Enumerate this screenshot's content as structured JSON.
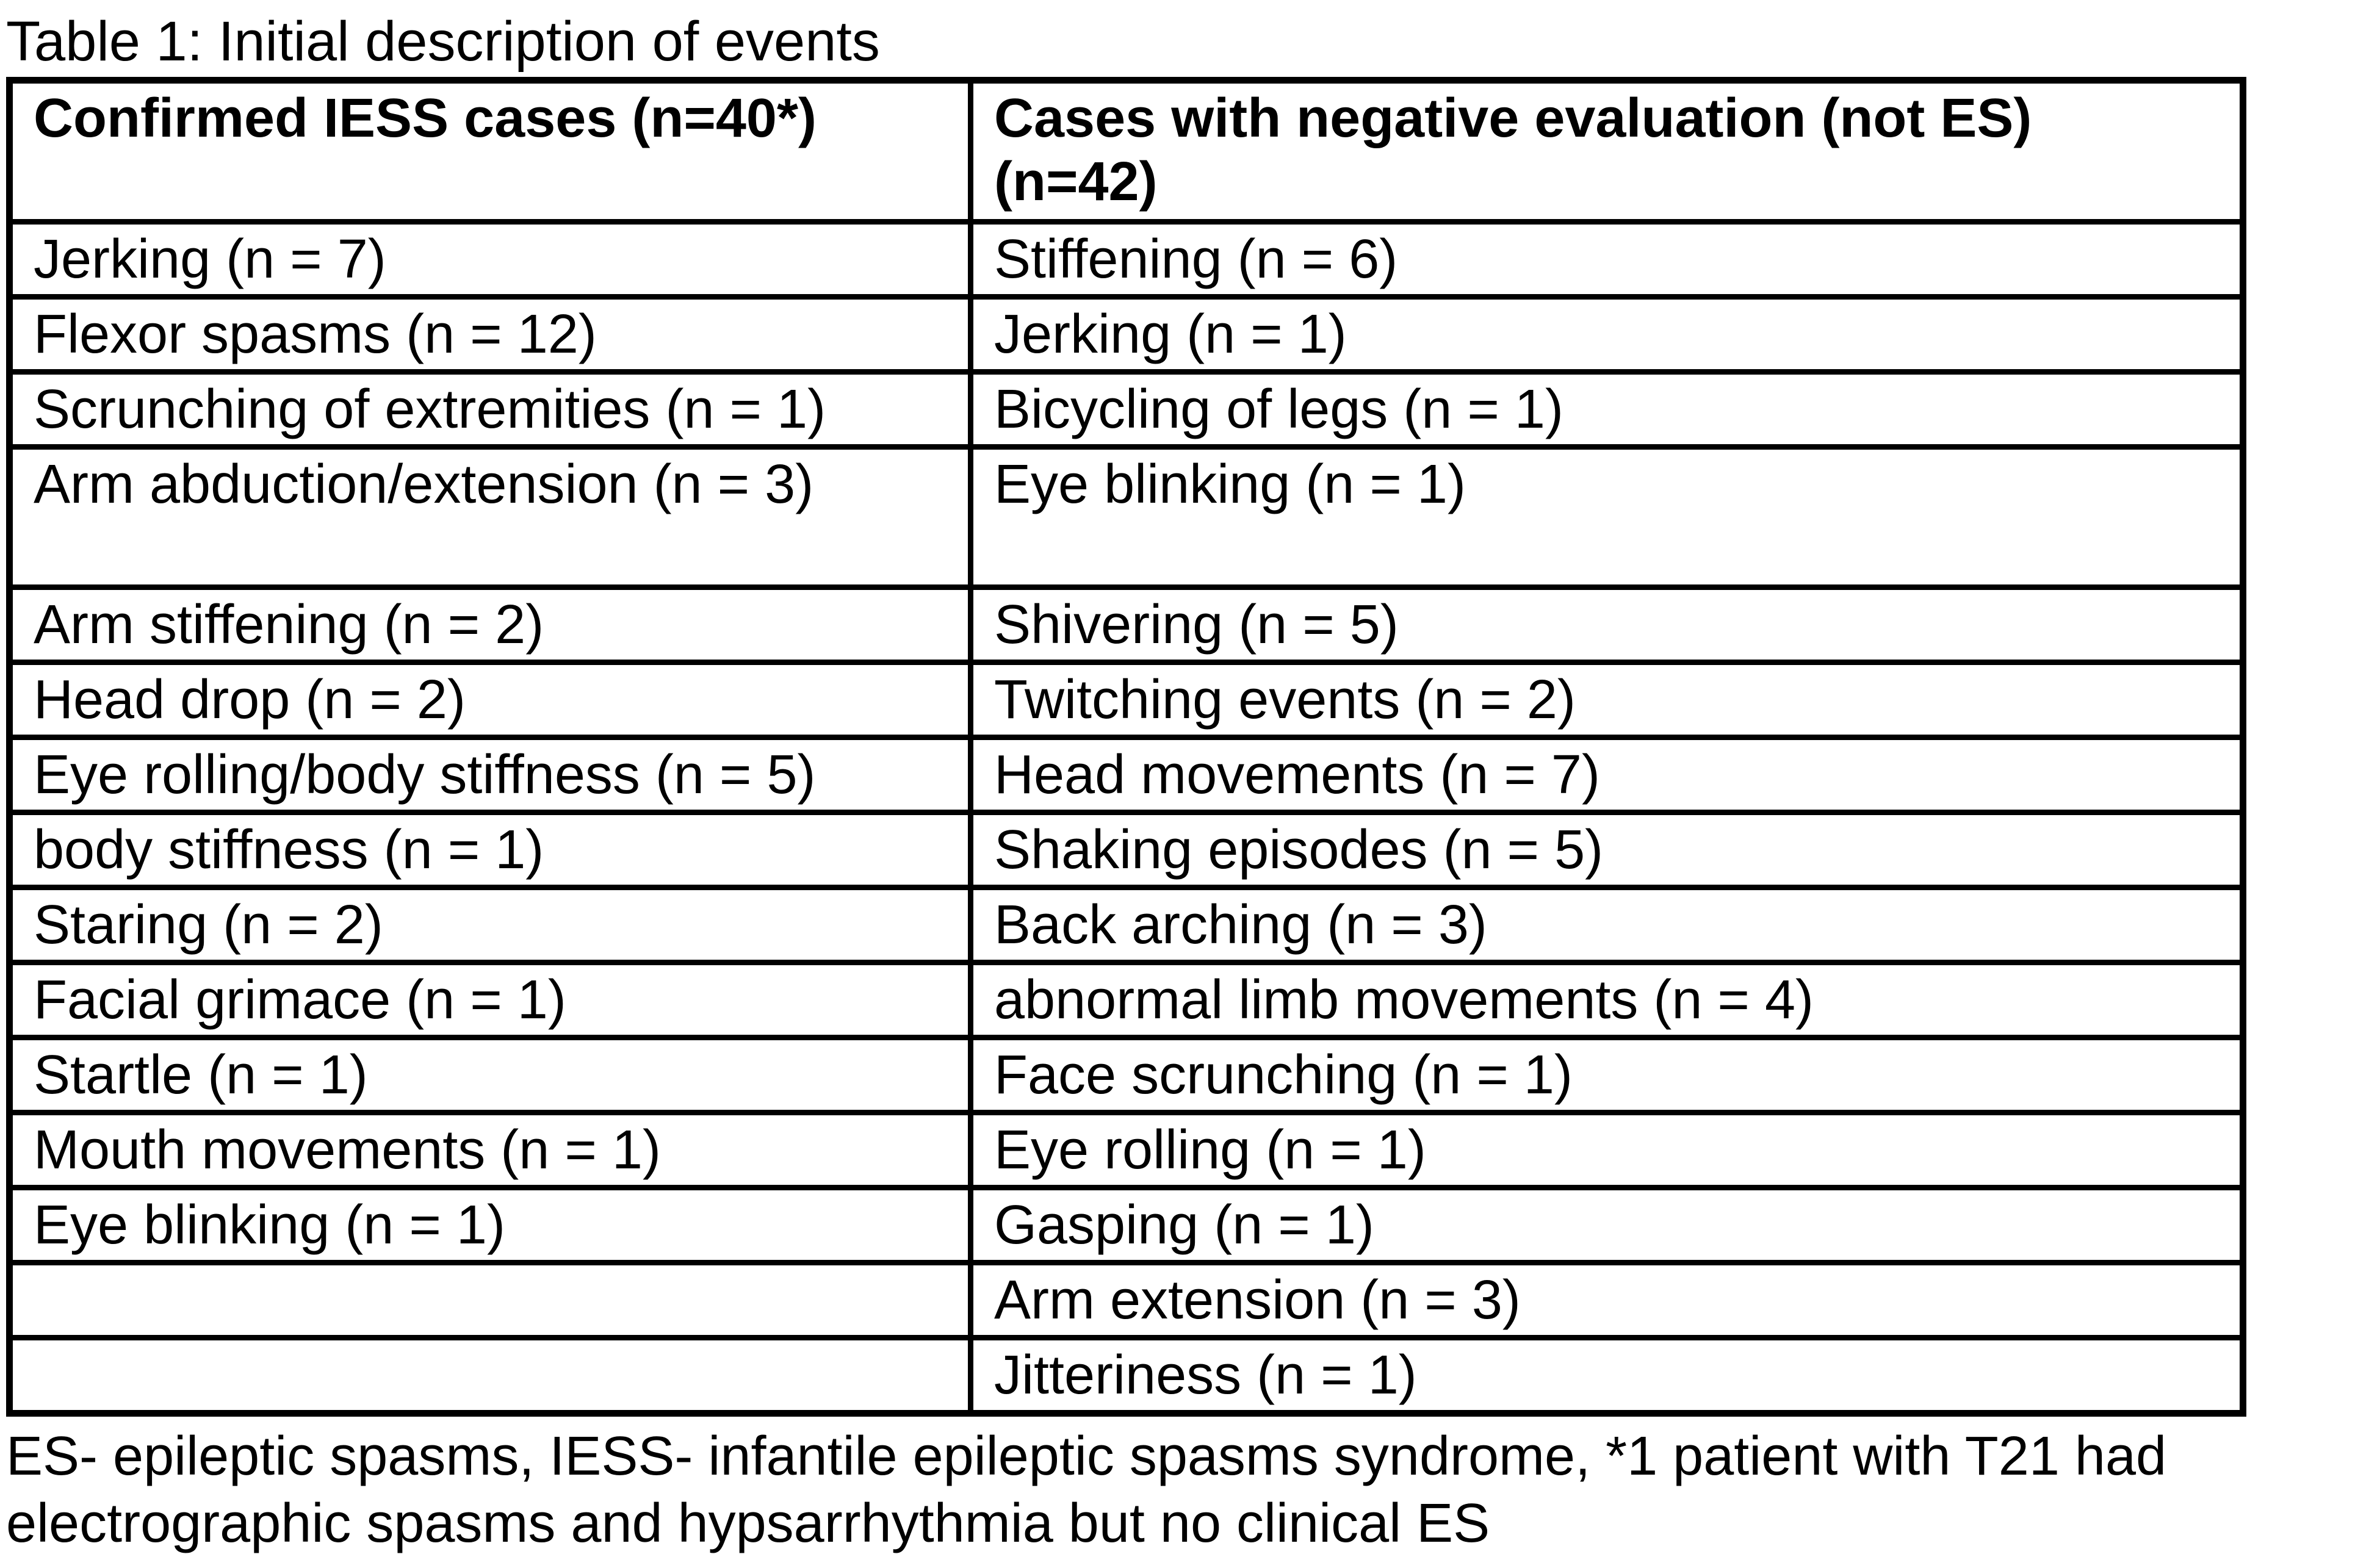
{
  "page": {
    "title_label": "Table 1: Initial description of events"
  },
  "table": {
    "header_row": {
      "col1": {
        "lines": [
          "Confirmed IESS cases (n=40*)"
        ]
      },
      "col2": {
        "lines": [
          "Cases with negative evaluation (not ES)",
          "(n=42)"
        ]
      }
    },
    "rows": [
      {
        "left": "Jerking (n = 7)",
        "right": "Stiffening (n = 6)",
        "tall": false
      },
      {
        "left": "Flexor spasms (n = 12)",
        "right": "Jerking (n = 1)",
        "tall": false
      },
      {
        "left": "Scrunching of extremities (n = 1)",
        "right": "Bicycling of legs (n = 1)",
        "tall": false
      },
      {
        "left": "Arm abduction/extension (n = 3)",
        "right": "Eye blinking (n = 1)",
        "tall": true
      },
      {
        "left": "Arm stiffening (n = 2)",
        "right": "Shivering (n = 5)",
        "tall": false
      },
      {
        "left": "Head drop (n = 2)",
        "right": "Twitching events (n = 2)",
        "tall": false
      },
      {
        "left": "Eye rolling/body stiffness (n = 5)",
        "right": "Head movements (n = 7)",
        "tall": false
      },
      {
        "left": "body stiffness (n = 1)",
        "right": "Shaking episodes (n = 5)",
        "tall": false
      },
      {
        "left": "Staring (n = 2)",
        "right": "Back arching (n = 3)",
        "tall": false
      },
      {
        "left": "Facial grimace (n = 1)",
        "right": "abnormal limb movements (n = 4)",
        "tall": false
      },
      {
        "left": "Startle (n = 1)",
        "right": "Face scrunching (n = 1)",
        "tall": false
      },
      {
        "left": "Mouth movements (n = 1)",
        "right": "Eye rolling (n = 1)",
        "tall": false
      },
      {
        "left": "Eye blinking (n = 1)",
        "right": "Gasping (n = 1)",
        "tall": false
      },
      {
        "left": "",
        "right": "Arm extension (n = 3)",
        "tall": false
      },
      {
        "left": "",
        "right": "Jitteriness (n = 1)",
        "tall": false
      }
    ]
  },
  "footnote_lines": [
    "ES- epileptic spasms, IESS- infantile epileptic spasms syndrome, *1 patient with T21 had",
    "electrographic spasms and hypsarrhythmia but no clinical ES"
  ],
  "colors": {
    "text": "#000000",
    "background": "#ffffff",
    "border": "#000000"
  }
}
